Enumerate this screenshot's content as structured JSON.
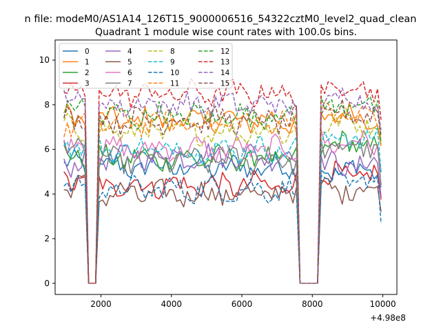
{
  "chart_data": {
    "type": "line",
    "suptitle": "n file: modeM0/AS1A14_126T15_9000006516_54322cztM0_level2_quad_clean",
    "title": "Quadrant 1 module wise count rates with 100.0s bins.",
    "xlabel": "",
    "ylabel": "",
    "x_offset_label": "+4.98e8",
    "xlim": [
      700,
      10400
    ],
    "ylim": [
      -0.5,
      10.9
    ],
    "xticks": [
      {
        "value": 2000,
        "label": "2000"
      },
      {
        "value": 4000,
        "label": "4000"
      },
      {
        "value": 6000,
        "label": "6000"
      },
      {
        "value": 8000,
        "label": "8000"
      },
      {
        "value": 10000,
        "label": "10000"
      }
    ],
    "yticks": [
      {
        "value": 0,
        "label": "0"
      },
      {
        "value": 2,
        "label": "2"
      },
      {
        "value": 4,
        "label": "4"
      },
      {
        "value": 6,
        "label": "6"
      },
      {
        "value": 8,
        "label": "8"
      },
      {
        "value": 10,
        "label": "10"
      }
    ],
    "grid": false,
    "legend_position": "top-left",
    "x_domain": {
      "start": 950,
      "end": 9950,
      "step": 100
    },
    "gaps": [
      [
        1600,
        1900
      ],
      [
        7600,
        8200
      ]
    ],
    "series": [
      {
        "name": "0",
        "color": "#1f77b4",
        "dash": "solid",
        "levels": [
          5.3,
          5.2,
          5.1
        ]
      },
      {
        "name": "1",
        "color": "#ff7f0e",
        "dash": "solid",
        "levels": [
          7.4,
          7.3,
          7.5
        ]
      },
      {
        "name": "2",
        "color": "#2ca02c",
        "dash": "solid",
        "levels": [
          5.8,
          5.6,
          6.2
        ]
      },
      {
        "name": "3",
        "color": "#d62728",
        "dash": "solid",
        "levels": [
          4.6,
          4.4,
          4.8
        ]
      },
      {
        "name": "4",
        "color": "#9467bd",
        "dash": "solid",
        "levels": [
          5.4,
          5.7,
          5.3
        ]
      },
      {
        "name": "5",
        "color": "#8c564b",
        "dash": "solid",
        "levels": [
          4.3,
          4.0,
          4.2
        ]
      },
      {
        "name": "6",
        "color": "#e377c2",
        "dash": "solid",
        "levels": [
          6.2,
          6.0,
          6.3
        ]
      },
      {
        "name": "7",
        "color": "#7f7f7f",
        "dash": "solid",
        "levels": [
          6.0,
          5.5,
          6.1
        ]
      },
      {
        "name": "8",
        "color": "#bcbd22",
        "dash": "dashed",
        "levels": [
          7.0,
          6.8,
          7.2
        ]
      },
      {
        "name": "9",
        "color": "#17becf",
        "dash": "dashed",
        "levels": [
          6.2,
          6.0,
          6.5
        ]
      },
      {
        "name": "10",
        "color": "#1f77b4",
        "dash": "dashed",
        "levels": [
          4.6,
          4.2,
          4.5
        ]
      },
      {
        "name": "11",
        "color": "#ff7f0e",
        "dash": "dashed",
        "levels": [
          7.0,
          7.2,
          7.5
        ]
      },
      {
        "name": "12",
        "color": "#2ca02c",
        "dash": "dashed",
        "levels": [
          7.8,
          7.5,
          8.0
        ]
      },
      {
        "name": "13",
        "color": "#d62728",
        "dash": "dashed",
        "levels": [
          8.5,
          8.5,
          8.8
        ]
      },
      {
        "name": "14",
        "color": "#9467bd",
        "dash": "dashed",
        "levels": [
          8.3,
          8.0,
          8.3
        ]
      },
      {
        "name": "15",
        "color": "#8c564b",
        "dash": "dashed",
        "levels": [
          7.5,
          7.3,
          7.6
        ]
      }
    ]
  }
}
